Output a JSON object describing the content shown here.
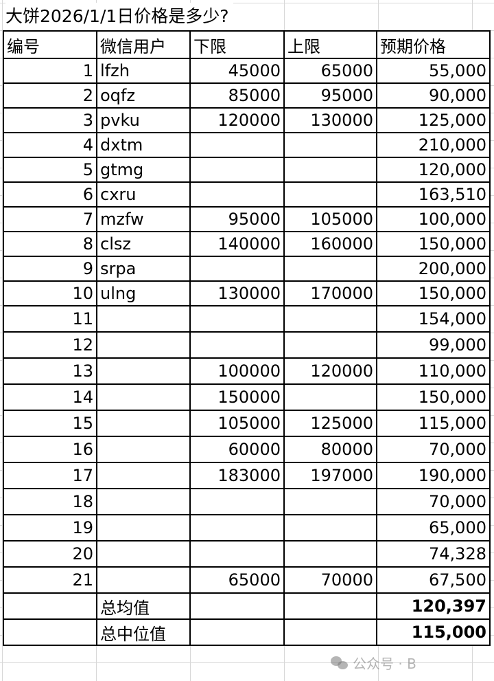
{
  "title": "大饼2026/1/1日价格是多少?",
  "headers": [
    "编号",
    "微信用户",
    "下限",
    "上限",
    "预期价格"
  ],
  "rows": [
    [
      "1",
      "lfzh",
      "45000",
      "65000",
      "55,000"
    ],
    [
      "2",
      "oqfz",
      "85000",
      "95000",
      "90,000"
    ],
    [
      "3",
      "pvku",
      "120000",
      "130000",
      "125,000"
    ],
    [
      "4",
      "dxtm",
      "",
      "",
      "210,000"
    ],
    [
      "5",
      "gtmg",
      "",
      "",
      "120,000"
    ],
    [
      "6",
      "cxru",
      "",
      "",
      "163,510"
    ],
    [
      "7",
      "mzfw",
      "95000",
      "105000",
      "100,000"
    ],
    [
      "8",
      "clsz",
      "140000",
      "160000",
      "150,000"
    ],
    [
      "9",
      "srpa",
      "",
      "",
      "200,000"
    ],
    [
      "10",
      "ulng",
      "130000",
      "170000",
      "150,000"
    ],
    [
      "11",
      "",
      "",
      "",
      "154,000"
    ],
    [
      "12",
      "",
      "",
      "",
      "99,000"
    ],
    [
      "13",
      "",
      "100000",
      "120000",
      "110,000"
    ],
    [
      "14",
      "",
      "150000",
      "",
      "150,000"
    ],
    [
      "15",
      "",
      "105000",
      "125000",
      "115,000"
    ],
    [
      "16",
      "",
      "60000",
      "80000",
      "70,000"
    ],
    [
      "17",
      "",
      "183000",
      "197000",
      "190,000"
    ],
    [
      "18",
      "",
      "",
      "",
      "70,000"
    ],
    [
      "19",
      "",
      "",
      "",
      "65,000"
    ],
    [
      "20",
      "",
      "",
      "",
      "74,328"
    ],
    [
      "21",
      "",
      "65000",
      "70000",
      "67,500"
    ]
  ],
  "summary": [
    {
      "label": "总均值",
      "value": "120,397"
    },
    {
      "label": "总中位值",
      "value": "115,000"
    }
  ],
  "watermark": "公众号 · B"
}
